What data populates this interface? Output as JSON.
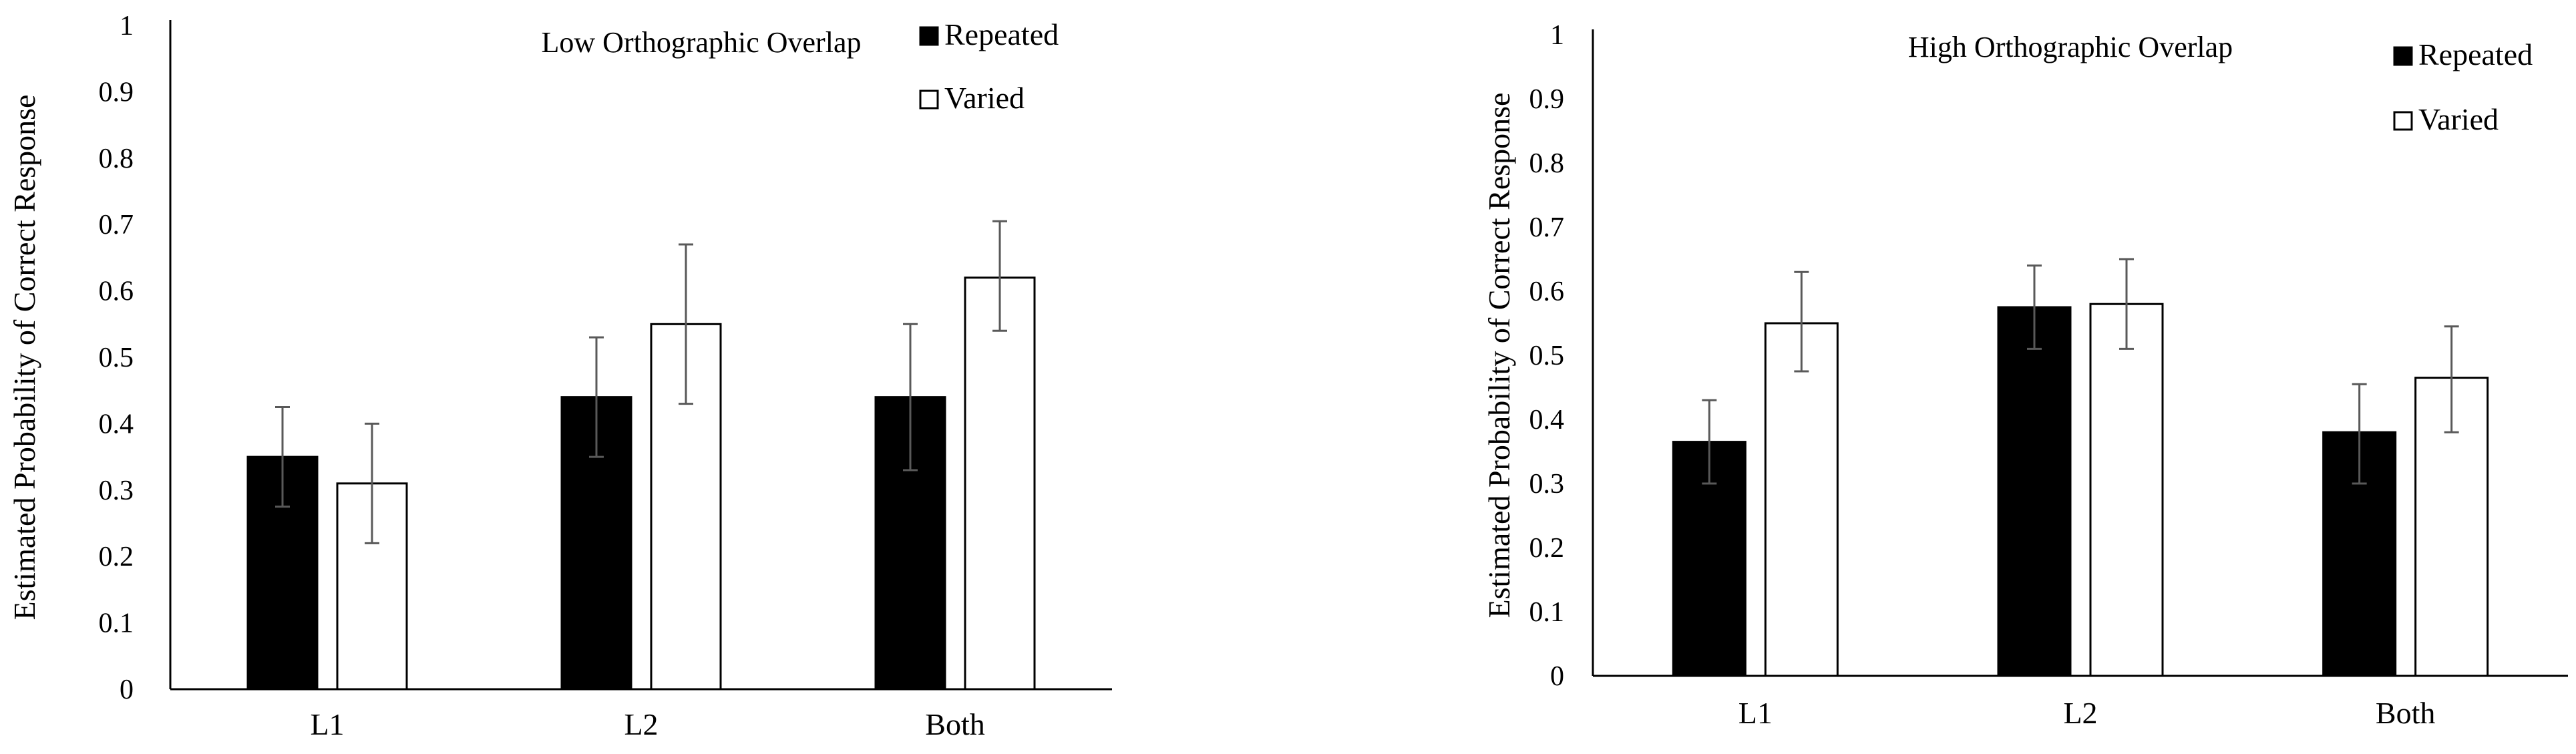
{
  "chart_data": [
    {
      "type": "bar",
      "title": "Low Orthographic Overlap",
      "ylabel": "Estimated Probability of Correct Response",
      "xlabel": "",
      "ylim": [
        0,
        1
      ],
      "yticks": [
        "0",
        "0.1",
        "0.2",
        "0.3",
        "0.4",
        "0.5",
        "0.6",
        "0.7",
        "0.8",
        "0.9",
        "1"
      ],
      "categories": [
        "L1",
        "L2",
        "Both"
      ],
      "legend_position": "top-right",
      "grid": false,
      "series": [
        {
          "name": "Repeated",
          "fill": "#000000",
          "values": [
            0.35,
            0.44,
            0.44
          ],
          "err_low": [
            0.275,
            0.35,
            0.33
          ],
          "err_high": [
            0.425,
            0.53,
            0.55
          ]
        },
        {
          "name": "Varied",
          "fill": "#ffffff",
          "values": [
            0.31,
            0.55,
            0.62
          ],
          "err_low": [
            0.22,
            0.43,
            0.54
          ],
          "err_high": [
            0.4,
            0.67,
            0.705
          ]
        }
      ]
    },
    {
      "type": "bar",
      "title": "High Orthographic Overlap",
      "ylabel": "Estimated Probability of Correct Response",
      "xlabel": "",
      "ylim": [
        0,
        1
      ],
      "yticks": [
        "0",
        "0.1",
        "0.2",
        "0.3",
        "0.4",
        "0.5",
        "0.6",
        "0.7",
        "0.8",
        "0.9",
        "1"
      ],
      "categories": [
        "L1",
        "L2",
        "Both"
      ],
      "legend_position": "top-right",
      "grid": false,
      "series": [
        {
          "name": "Repeated",
          "fill": "#000000",
          "values": [
            0.365,
            0.575,
            0.38
          ],
          "err_low": [
            0.3,
            0.51,
            0.3
          ],
          "err_high": [
            0.43,
            0.64,
            0.455
          ]
        },
        {
          "name": "Varied",
          "fill": "#ffffff",
          "values": [
            0.55,
            0.58,
            0.465
          ],
          "err_low": [
            0.475,
            0.51,
            0.38
          ],
          "err_high": [
            0.63,
            0.65,
            0.545
          ]
        }
      ]
    }
  ]
}
